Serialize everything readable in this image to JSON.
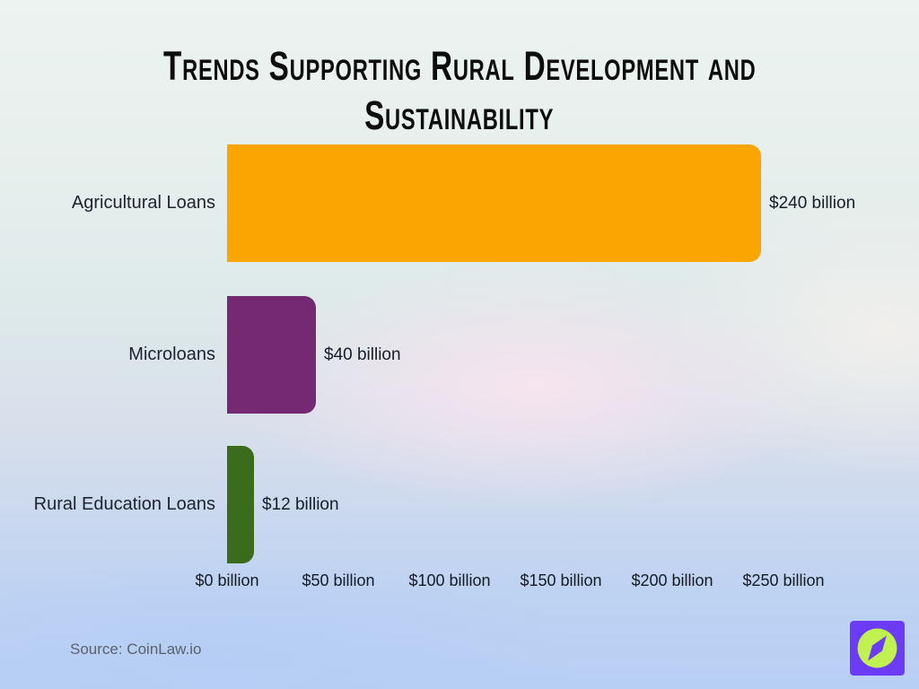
{
  "title": "Trends Supporting Rural Development and Sustainability",
  "title_lines": [
    "Trends Supporting Rural Development and",
    "Sustainability"
  ],
  "source": "Source: CoinLaw.io",
  "logo": {
    "name": "coinlaw-compass-logo",
    "square_color": "#6C3BF5",
    "circle_color": "#C1F150",
    "needle_color": "#6C3BF5"
  },
  "colors": {
    "title_text": "#0d0d0d",
    "label_text": "#1d2330",
    "source_text": "#59616e"
  },
  "chart_data": {
    "type": "bar",
    "orientation": "horizontal",
    "title": "Trends Supporting Rural Development and Sustainability",
    "categories": [
      "Agricultural Loans",
      "Microloans",
      "Rural Education Loans"
    ],
    "values": [
      240,
      40,
      12
    ],
    "value_labels": [
      "$240 billion",
      "$40 billion",
      "$12 billion"
    ],
    "bar_colors": [
      "#FAA502",
      "#742972",
      "#3B6C1B"
    ],
    "xlabel": "",
    "ylabel": "",
    "unit": "billion",
    "xlim": [
      0,
      250
    ],
    "x_ticks": [
      0,
      50,
      100,
      150,
      200,
      250
    ],
    "x_tick_labels": [
      "$0 billion",
      "$50 billion",
      "$100 billion",
      "$150 billion",
      "$200 billion",
      "$250 billion"
    ],
    "grid": false,
    "legend": false
  }
}
